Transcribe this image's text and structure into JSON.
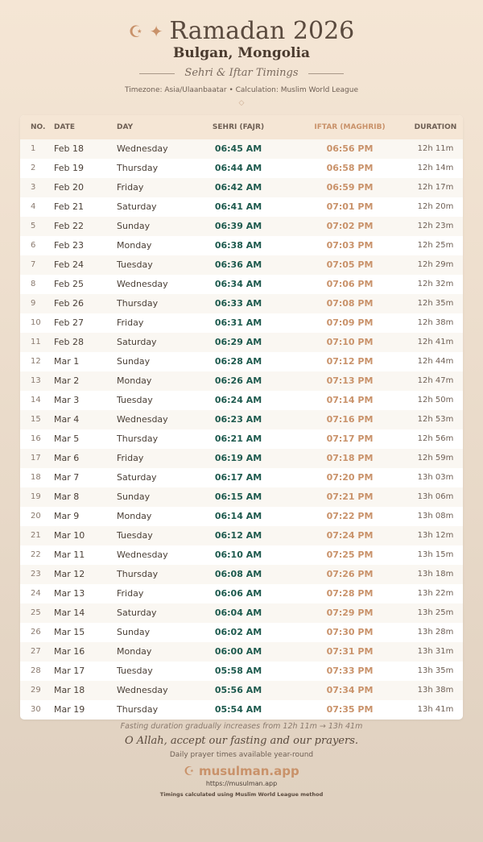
{
  "header": {
    "title": "Ramadan 2026",
    "location": "Bulgan, Mongolia",
    "subtitle": "Sehri & Iftar Timings",
    "info": "Timezone: Asia/Ulaanbaatar • Calculation: Muslim World League",
    "icons": [
      "crescent-icon",
      "star-icon",
      "diamond-icon"
    ]
  },
  "table": {
    "columns": [
      "NO.",
      "DATE",
      "DAY",
      "SEHRI (FAJR)",
      "IFTAR (MAGHRIB)",
      "DURATION"
    ],
    "rows": [
      [
        "1",
        "Feb 18",
        "Wednesday",
        "06:45 AM",
        "06:56 PM",
        "12h 11m"
      ],
      [
        "2",
        "Feb 19",
        "Thursday",
        "06:44 AM",
        "06:58 PM",
        "12h 14m"
      ],
      [
        "3",
        "Feb 20",
        "Friday",
        "06:42 AM",
        "06:59 PM",
        "12h 17m"
      ],
      [
        "4",
        "Feb 21",
        "Saturday",
        "06:41 AM",
        "07:01 PM",
        "12h 20m"
      ],
      [
        "5",
        "Feb 22",
        "Sunday",
        "06:39 AM",
        "07:02 PM",
        "12h 23m"
      ],
      [
        "6",
        "Feb 23",
        "Monday",
        "06:38 AM",
        "07:03 PM",
        "12h 25m"
      ],
      [
        "7",
        "Feb 24",
        "Tuesday",
        "06:36 AM",
        "07:05 PM",
        "12h 29m"
      ],
      [
        "8",
        "Feb 25",
        "Wednesday",
        "06:34 AM",
        "07:06 PM",
        "12h 32m"
      ],
      [
        "9",
        "Feb 26",
        "Thursday",
        "06:33 AM",
        "07:08 PM",
        "12h 35m"
      ],
      [
        "10",
        "Feb 27",
        "Friday",
        "06:31 AM",
        "07:09 PM",
        "12h 38m"
      ],
      [
        "11",
        "Feb 28",
        "Saturday",
        "06:29 AM",
        "07:10 PM",
        "12h 41m"
      ],
      [
        "12",
        "Mar 1",
        "Sunday",
        "06:28 AM",
        "07:12 PM",
        "12h 44m"
      ],
      [
        "13",
        "Mar 2",
        "Monday",
        "06:26 AM",
        "07:13 PM",
        "12h 47m"
      ],
      [
        "14",
        "Mar 3",
        "Tuesday",
        "06:24 AM",
        "07:14 PM",
        "12h 50m"
      ],
      [
        "15",
        "Mar 4",
        "Wednesday",
        "06:23 AM",
        "07:16 PM",
        "12h 53m"
      ],
      [
        "16",
        "Mar 5",
        "Thursday",
        "06:21 AM",
        "07:17 PM",
        "12h 56m"
      ],
      [
        "17",
        "Mar 6",
        "Friday",
        "06:19 AM",
        "07:18 PM",
        "12h 59m"
      ],
      [
        "18",
        "Mar 7",
        "Saturday",
        "06:17 AM",
        "07:20 PM",
        "13h 03m"
      ],
      [
        "19",
        "Mar 8",
        "Sunday",
        "06:15 AM",
        "07:21 PM",
        "13h 06m"
      ],
      [
        "20",
        "Mar 9",
        "Monday",
        "06:14 AM",
        "07:22 PM",
        "13h 08m"
      ],
      [
        "21",
        "Mar 10",
        "Tuesday",
        "06:12 AM",
        "07:24 PM",
        "13h 12m"
      ],
      [
        "22",
        "Mar 11",
        "Wednesday",
        "06:10 AM",
        "07:25 PM",
        "13h 15m"
      ],
      [
        "23",
        "Mar 12",
        "Thursday",
        "06:08 AM",
        "07:26 PM",
        "13h 18m"
      ],
      [
        "24",
        "Mar 13",
        "Friday",
        "06:06 AM",
        "07:28 PM",
        "13h 22m"
      ],
      [
        "25",
        "Mar 14",
        "Saturday",
        "06:04 AM",
        "07:29 PM",
        "13h 25m"
      ],
      [
        "26",
        "Mar 15",
        "Sunday",
        "06:02 AM",
        "07:30 PM",
        "13h 28m"
      ],
      [
        "27",
        "Mar 16",
        "Monday",
        "06:00 AM",
        "07:31 PM",
        "13h 31m"
      ],
      [
        "28",
        "Mar 17",
        "Tuesday",
        "05:58 AM",
        "07:33 PM",
        "13h 35m"
      ],
      [
        "29",
        "Mar 18",
        "Wednesday",
        "05:56 AM",
        "07:34 PM",
        "13h 38m"
      ],
      [
        "30",
        "Mar 19",
        "Thursday",
        "05:54 AM",
        "07:35 PM",
        "13h 41m"
      ]
    ]
  },
  "footer": {
    "note": "Fasting duration gradually increases from 12h 11m → 13h 41m",
    "prayer": "O Allah, accept our fasting and our prayers.",
    "tagline": "Daily prayer times available year-round",
    "brand": "musulman.app",
    "url": "https://musulman.app",
    "method": "Timings calculated using Muslim World League method"
  },
  "colors": {
    "sehri": "#1e5a4e",
    "iftar": "#c9926a",
    "accent": "#c9926a"
  }
}
